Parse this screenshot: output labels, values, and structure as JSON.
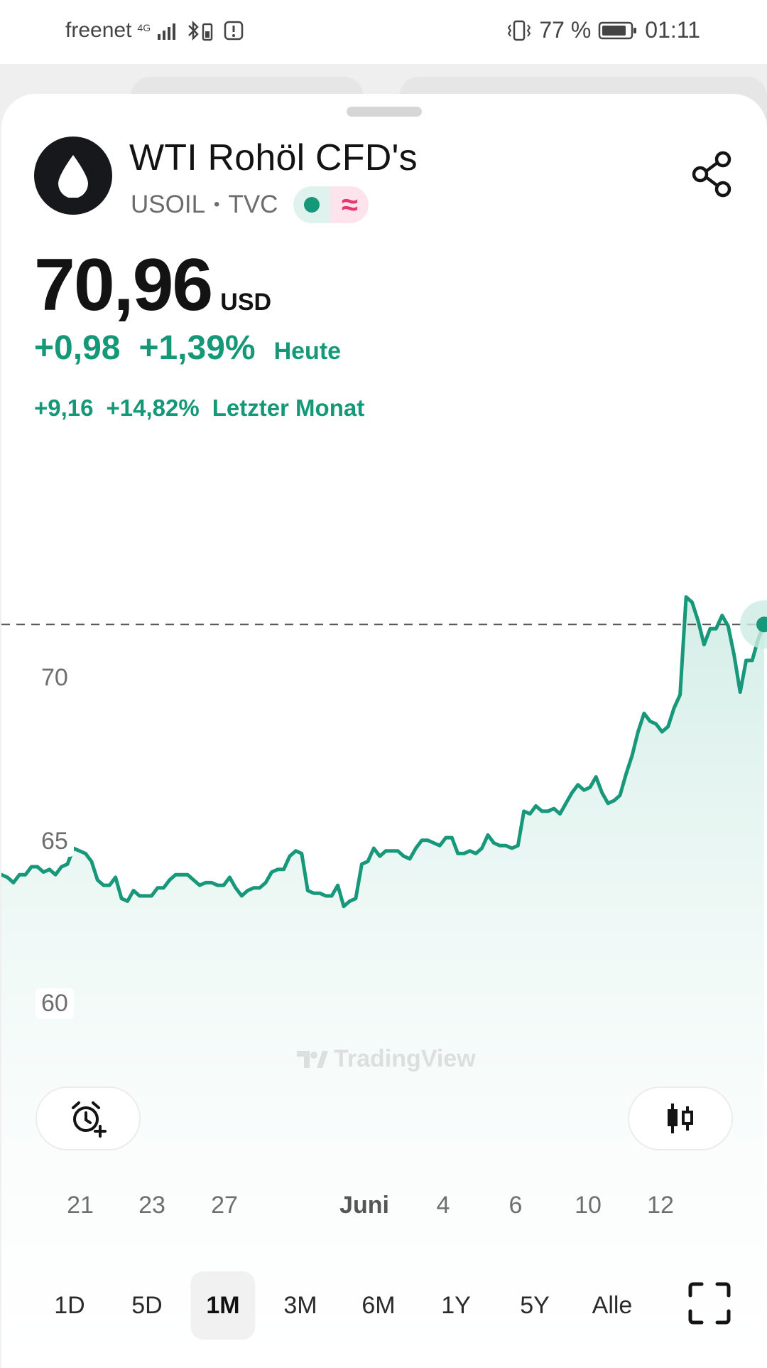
{
  "status_bar": {
    "carrier": "freenet",
    "network": "4G",
    "battery": "77 %",
    "time": "01:11"
  },
  "instrument": {
    "name": "WTI Rohöl CFD's",
    "symbol": "USOIL",
    "exchange": "TVC",
    "separator": "•",
    "logo_icon": "oil-drop-icon",
    "badge_status_color": "#149877",
    "badge_symbol": "≈"
  },
  "price": {
    "value": "70,96",
    "currency": "USD"
  },
  "change_today": {
    "abs": "+0,98",
    "pct": "+1,39%",
    "label": "Heute"
  },
  "change_month": {
    "abs": "+9,16",
    "pct": "+14,82%",
    "label": "Letzter Monat"
  },
  "colors": {
    "accent": "#149877",
    "line": "#17987a",
    "fill": "#dff2ed",
    "negative_badge": "#e5376d"
  },
  "watermark": "TradingView",
  "actions": {
    "alert_icon": "add-alert-clock-icon",
    "chart_type_icon": "candlestick-icon",
    "share_icon": "share-icon",
    "fullscreen_icon": "fullscreen-icon"
  },
  "chart_data": {
    "type": "area",
    "y_ticks": [
      "60",
      "65",
      "70"
    ],
    "ylim": [
      58.0,
      74.5
    ],
    "x_ticks": [
      "21",
      "23",
      "27",
      "Juni",
      "4",
      "6",
      "10",
      "12"
    ],
    "last_price_line": 70.96,
    "grid": false,
    "values": [
      61.5,
      61.4,
      61.2,
      61.5,
      61.5,
      61.8,
      61.8,
      61.6,
      61.7,
      61.5,
      61.8,
      61.9,
      62.5,
      62.4,
      62.3,
      62.0,
      61.3,
      61.1,
      61.1,
      61.4,
      60.6,
      60.5,
      60.9,
      60.7,
      60.7,
      60.7,
      61.0,
      61.0,
      61.3,
      61.5,
      61.5,
      61.5,
      61.3,
      61.1,
      61.2,
      61.2,
      61.1,
      61.1,
      61.4,
      61.0,
      60.7,
      60.9,
      61.0,
      61.0,
      61.2,
      61.6,
      61.7,
      61.7,
      62.2,
      62.4,
      62.3,
      60.9,
      60.8,
      60.8,
      60.7,
      60.7,
      61.1,
      60.3,
      60.5,
      60.6,
      61.9,
      62.0,
      62.5,
      62.2,
      62.4,
      62.4,
      62.4,
      62.2,
      62.1,
      62.5,
      62.8,
      62.8,
      62.7,
      62.6,
      62.9,
      62.9,
      62.3,
      62.3,
      62.4,
      62.3,
      62.5,
      63.0,
      62.7,
      62.6,
      62.6,
      62.5,
      62.6,
      63.9,
      63.8,
      64.1,
      63.9,
      63.9,
      64.0,
      63.8,
      64.2,
      64.6,
      64.9,
      64.7,
      64.8,
      65.2,
      64.6,
      64.2,
      64.3,
      64.5,
      65.3,
      66.0,
      66.9,
      67.6,
      67.3,
      67.2,
      66.9,
      67.1,
      67.8,
      68.3,
      72.0,
      71.8,
      71.1,
      70.2,
      70.8,
      70.8,
      71.3,
      70.9,
      69.8,
      68.4,
      69.6,
      69.6,
      70.4,
      70.96
    ]
  },
  "periods": [
    {
      "label": "1D",
      "active": false
    },
    {
      "label": "5D",
      "active": false
    },
    {
      "label": "1M",
      "active": true
    },
    {
      "label": "3M",
      "active": false
    },
    {
      "label": "6M",
      "active": false
    },
    {
      "label": "1Y",
      "active": false
    },
    {
      "label": "5Y",
      "active": false
    },
    {
      "label": "Alle",
      "active": false
    }
  ]
}
